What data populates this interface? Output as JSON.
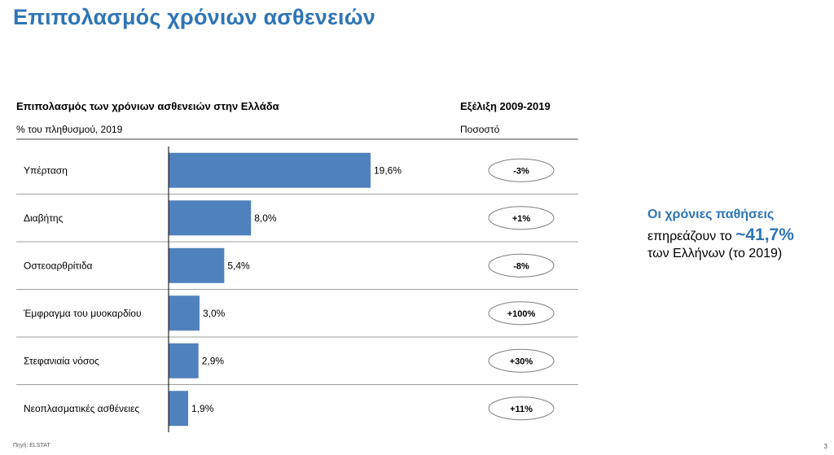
{
  "slide": {
    "title": "Επιπολασμός χρόνιων ασθενειών",
    "source": "Πηγή: ELSTAT",
    "page_number": "3"
  },
  "chart_data": {
    "type": "bar",
    "orientation": "horizontal",
    "title": "Επιπολασμός των χρόνιων ασθενειών στην Ελλάδα",
    "subtitle": "% του πληθυσμού, 2019",
    "categories": [
      "Υπέρταση",
      "Διαβήτης",
      "Οστεοαρθρίτιδα",
      "Έμφραγμα του μυοκαρδίου",
      "Στεφανιαία νόσος",
      "Νεοπλασματικές ασθένειες"
    ],
    "values": [
      19.6,
      8.0,
      5.4,
      3.0,
      2.9,
      1.9
    ],
    "value_labels": [
      "19,6%",
      "8,0%",
      "5,4%",
      "3,0%",
      "2,9%",
      "1,9%"
    ],
    "color": "#4f81bd",
    "xlim": [
      0,
      19.6
    ]
  },
  "trend": {
    "title": "Εξέλιξη 2009-2019",
    "subtitle": "Ποσοστό",
    "changes": [
      "-3%",
      "+1%",
      "-8%",
      "+100%",
      "+30%",
      "+11%"
    ]
  },
  "callout": {
    "title": "Οι χρόνιες παθήσεις",
    "line_prefix": "επηρεάζουν το ",
    "highlight": "~41,7%",
    "line_suffix": "των Ελλήνων (το 2019)"
  }
}
